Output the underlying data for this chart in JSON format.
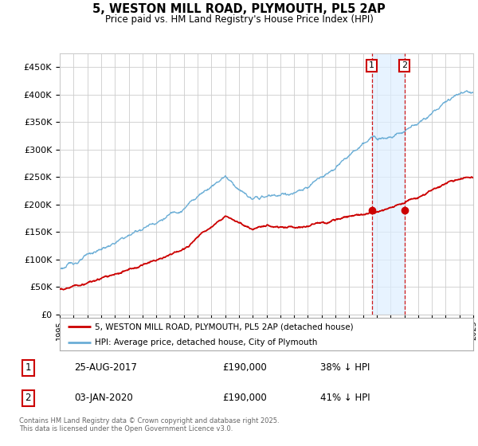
{
  "title_line1": "5, WESTON MILL ROAD, PLYMOUTH, PL5 2AP",
  "title_line2": "Price paid vs. HM Land Registry's House Price Index (HPI)",
  "ylim": [
    0,
    475000
  ],
  "yticks": [
    0,
    50000,
    100000,
    150000,
    200000,
    250000,
    300000,
    350000,
    400000,
    450000
  ],
  "ytick_labels": [
    "£0",
    "£50K",
    "£100K",
    "£150K",
    "£200K",
    "£250K",
    "£300K",
    "£350K",
    "£400K",
    "£450K"
  ],
  "hpi_color": "#6baed6",
  "price_color": "#cc0000",
  "transaction1_year": 2017.646,
  "transaction1_price": 190000,
  "transaction2_year": 2020.008,
  "transaction2_price": 190000,
  "legend_label_price": "5, WESTON MILL ROAD, PLYMOUTH, PL5 2AP (detached house)",
  "legend_label_hpi": "HPI: Average price, detached house, City of Plymouth",
  "table_row1": [
    "1",
    "25-AUG-2017",
    "£190,000",
    "38% ↓ HPI"
  ],
  "table_row2": [
    "2",
    "03-JAN-2020",
    "£190,000",
    "41% ↓ HPI"
  ],
  "footer": "Contains HM Land Registry data © Crown copyright and database right 2025.\nThis data is licensed under the Open Government Licence v3.0.",
  "bg_color": "#ffffff",
  "grid_color": "#cccccc",
  "start_year": 1995,
  "end_year": 2025,
  "shade_color": "#ddeeff"
}
